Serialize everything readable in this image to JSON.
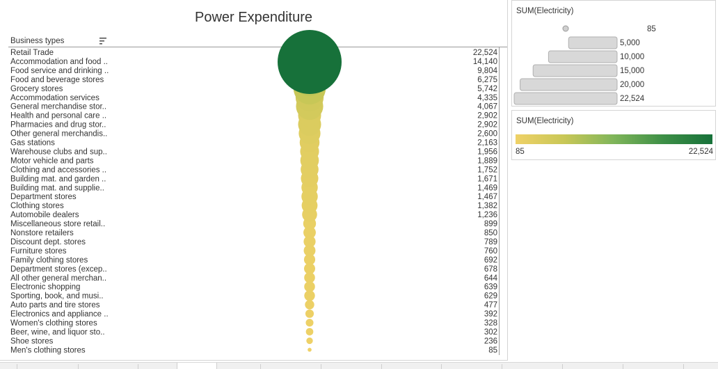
{
  "chart_data": {
    "type": "scatter",
    "title": "Power Expenditure",
    "row_header": "Business types",
    "measure": "SUM(Electricity)",
    "categories": [
      "Retail Trade",
      "Accommodation and food ..",
      "Food service and drinking ..",
      "Food and beverage stores",
      "Grocery stores",
      "Accommodation services",
      "General merchandise stor..",
      "Health and personal care ..",
      "Pharmacies and drug stor..",
      "Other general merchandis..",
      "Gas stations",
      "Warehouse clubs and sup..",
      "Motor vehicle and parts",
      "Clothing and accessories ..",
      "Building mat. and garden ..",
      "Building mat. and supplie..",
      "Department stores",
      "Clothing stores",
      "Automobile dealers",
      "Miscellaneous store retail..",
      "Nonstore retailers",
      "Discount dept. stores",
      "Furniture stores",
      "Family clothing stores",
      "Department stores (excep..",
      "All other general merchan..",
      "Electronic shopping",
      "Sporting, book, and musi..",
      "Auto parts and tire stores",
      "Electronics and appliance ..",
      "Women's clothing stores",
      "Beer, wine, and liquor sto..",
      "Shoe stores",
      "Men's clothing stores"
    ],
    "values": [
      22524,
      14140,
      9804,
      6275,
      5742,
      4335,
      4067,
      2902,
      2902,
      2600,
      2163,
      1956,
      1889,
      1752,
      1671,
      1469,
      1467,
      1382,
      1236,
      899,
      850,
      789,
      760,
      692,
      678,
      644,
      639,
      629,
      477,
      392,
      328,
      302,
      236,
      85
    ],
    "value_labels": [
      "22,524",
      "14,140",
      "9,804",
      "6,275",
      "5,742",
      "4,335",
      "4,067",
      "2,902",
      "2,902",
      "2,600",
      "2,163",
      "1,956",
      "1,889",
      "1,752",
      "1,671",
      "1,469",
      "1,467",
      "1,382",
      "1,236",
      "899",
      "850",
      "789",
      "760",
      "692",
      "678",
      "644",
      "639",
      "629",
      "477",
      "392",
      "328",
      "302",
      "236",
      "85"
    ],
    "color_range": [
      "#efd167",
      "#17713a"
    ],
    "grid": false
  },
  "size_legend": {
    "title": "SUM(Electricity)",
    "values": [
      85,
      5000,
      10000,
      15000,
      20000,
      22524
    ],
    "labels": [
      "85",
      "5,000",
      "10,000",
      "15,000",
      "20,000",
      "22,524"
    ]
  },
  "color_legend": {
    "title": "SUM(Electricity)",
    "min_label": "85",
    "max_label": "22,524"
  }
}
